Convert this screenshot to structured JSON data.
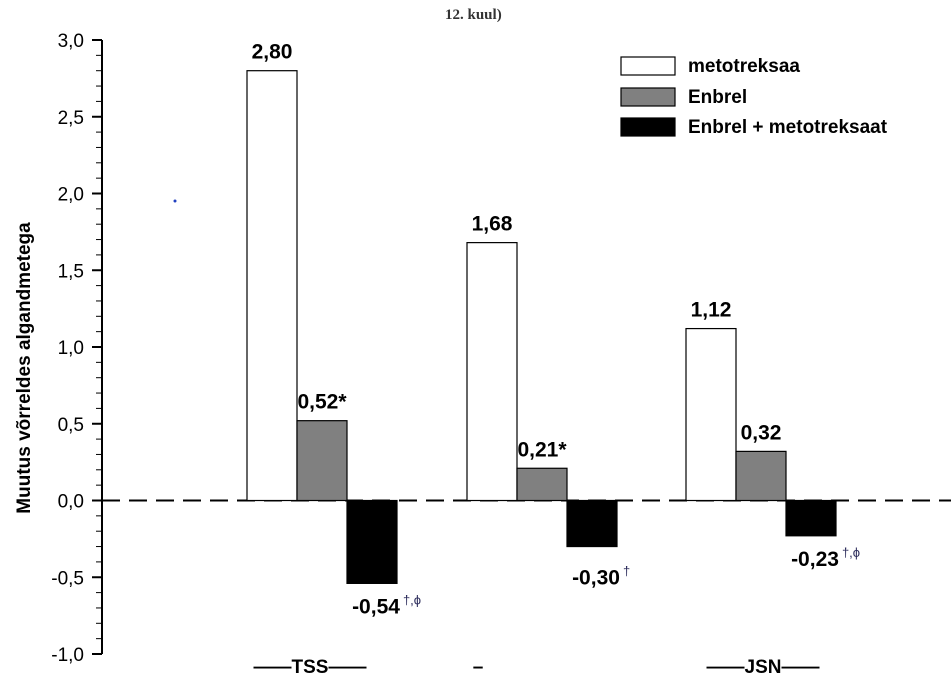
{
  "chart_data": {
    "type": "bar",
    "title": "",
    "title_fragment": "12. kuul)",
    "ylabel": "Muutus võrreldes algandmetega",
    "xlabel": "",
    "ylim": [
      -1.0,
      3.0
    ],
    "yticks": [
      "-1,0",
      "-0,5",
      "0,0",
      "0,5",
      "1,0",
      "1,5",
      "2,0",
      "2,5",
      "3,0"
    ],
    "ytick_values": [
      -1.0,
      -0.5,
      0.0,
      0.5,
      1.0,
      1.5,
      2.0,
      2.5,
      3.0
    ],
    "categories": [
      "——TSS——",
      "–",
      "——JSN——"
    ],
    "series": [
      {
        "name": "metotreksaa",
        "values": [
          2.8,
          1.68,
          1.12
        ],
        "labels": [
          "2,80",
          "1,68",
          "1,12"
        ],
        "marks": [
          "",
          "",
          ""
        ],
        "color": "#ffffff"
      },
      {
        "name": "Enbrel",
        "values": [
          0.52,
          0.21,
          0.32
        ],
        "labels": [
          "0,52*",
          "0,21*",
          "0,32"
        ],
        "marks": [
          "",
          "",
          ""
        ],
        "color": "#808080"
      },
      {
        "name": "Enbrel + metotreksaat",
        "values": [
          -0.54,
          -0.3,
          -0.23
        ],
        "labels": [
          "-0,54",
          "-0,30",
          "-0,23"
        ],
        "marks": [
          "†,ϕ",
          "†",
          "†,ϕ"
        ],
        "color": "#000000"
      }
    ],
    "zero_line": "dashed",
    "legend": "top-right",
    "grid": false
  }
}
